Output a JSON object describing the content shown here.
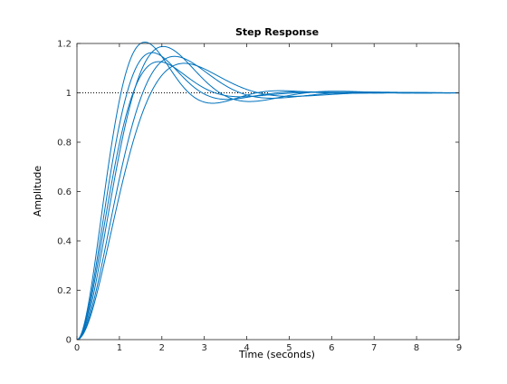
{
  "chart_data": {
    "type": "line",
    "title": "Step Response",
    "xlabel": "Time (seconds)",
    "ylabel": "Amplitude",
    "xlim": [
      0,
      9
    ],
    "ylim": [
      0,
      1.2
    ],
    "xticks": [
      "0",
      "1",
      "2",
      "3",
      "4",
      "5",
      "6",
      "7",
      "8",
      "9"
    ],
    "yticks": [
      "0",
      "0.2",
      "0.4",
      "0.6",
      "0.8",
      "1",
      "1.2"
    ],
    "grid": false,
    "reference_line": {
      "y": 1,
      "style": "dotted",
      "x_end": 4.5
    },
    "line_color": "#0072BD",
    "series_params": [
      {
        "zeta": 0.45,
        "wn": 2.2
      },
      {
        "zeta": 0.5,
        "wn": 2.05
      },
      {
        "zeta": 0.55,
        "wn": 1.95
      },
      {
        "zeta": 0.47,
        "wn": 1.75
      },
      {
        "zeta": 0.52,
        "wn": 1.6
      },
      {
        "zeta": 0.56,
        "wn": 1.5
      }
    ]
  }
}
